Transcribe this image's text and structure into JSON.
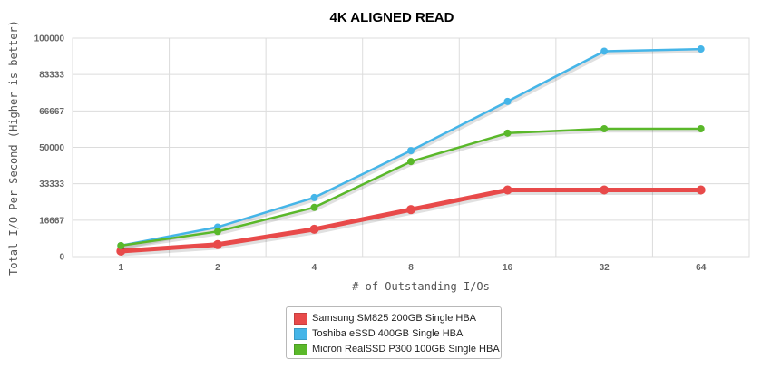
{
  "chart_data": {
    "type": "line",
    "title": "4K ALIGNED READ",
    "xlabel": "# of Outstanding I/Os",
    "ylabel": "Total I/O Per Second (Higher is better)",
    "categories": [
      "1",
      "2",
      "4",
      "8",
      "16",
      "32",
      "64"
    ],
    "ylim": [
      0,
      100000
    ],
    "y_ticks": [
      "0",
      "16667",
      "33333",
      "50000",
      "66667",
      "83333",
      "100000"
    ],
    "grid": true,
    "legend_position": "bottom",
    "series": [
      {
        "name": "Samsung SM825 200GB Single HBA",
        "color": "#e84a4a",
        "values": [
          2500,
          5500,
          12500,
          21500,
          30500,
          30500,
          30500
        ]
      },
      {
        "name": "Toshiba eSSD 400GB Single HBA",
        "color": "#45b5e8",
        "values": [
          5000,
          13500,
          27000,
          48500,
          71000,
          94000,
          95000
        ]
      },
      {
        "name": "Micron RealSSD P300 100GB Single HBA",
        "color": "#5ab82a",
        "values": [
          5000,
          11500,
          22500,
          43500,
          56500,
          58500,
          58500
        ]
      }
    ]
  }
}
